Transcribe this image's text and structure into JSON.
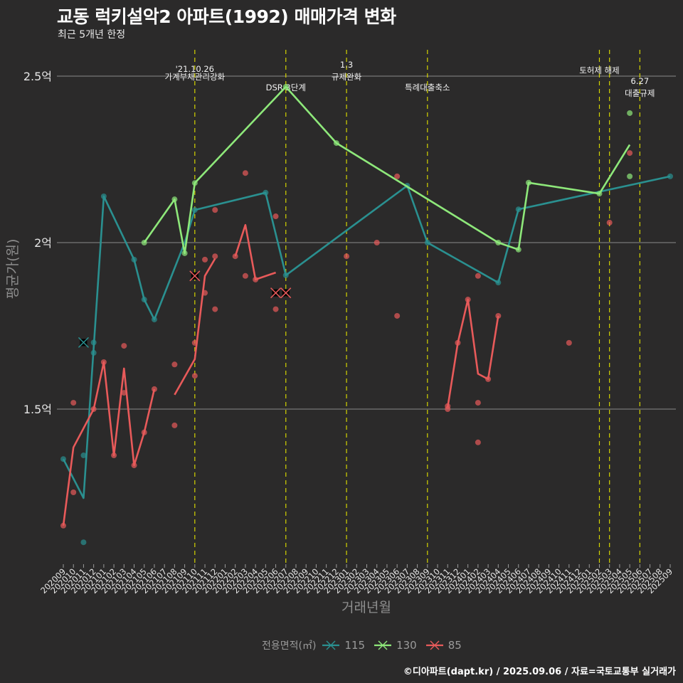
{
  "header": {
    "title": "교동 럭키설악2 아파트(1992) 매매가격 변화",
    "subtitle": "최근 5개년 한정"
  },
  "footer": {
    "credit": "©디아파트(dapt.kr) / 2025.09.06 / 자료=국토교통부 실거래가"
  },
  "legend": {
    "title": "전용면적(㎡)",
    "items": [
      {
        "label": "115",
        "color": "#2a9090"
      },
      {
        "label": "130",
        "color": "#8ee87a"
      },
      {
        "label": "85",
        "color": "#e85a5a"
      }
    ]
  },
  "chart_data": {
    "type": "line",
    "title": "교동 럭키설악2 아파트(1992) 매매가격 변화",
    "subtitle": "최근 5개년 한정",
    "xlabel": "거래년월",
    "ylabel": "평균가(원)",
    "ylim": [
      1.03,
      2.58
    ],
    "yticks": [
      {
        "value": 2.5,
        "label": "2.5억"
      },
      {
        "value": 2.0,
        "label": "2억"
      },
      {
        "value": 1.5,
        "label": "1.5억"
      }
    ],
    "grid": true,
    "legend_position": "bottom",
    "categories": [
      "202009",
      "202010",
      "202011",
      "202012",
      "202101",
      "202102",
      "202103",
      "202104",
      "202105",
      "202106",
      "202107",
      "202108",
      "202109",
      "202110",
      "202111",
      "202112",
      "202201",
      "202202",
      "202203",
      "202204",
      "202205",
      "202206",
      "202207",
      "202208",
      "202209",
      "202210",
      "202211",
      "202212",
      "202301",
      "202302",
      "202303",
      "202304",
      "202305",
      "202306",
      "202307",
      "202308",
      "202309",
      "202310",
      "202311",
      "202312",
      "202401",
      "202402",
      "202403",
      "202404",
      "202405",
      "202406",
      "202407",
      "202408",
      "202409",
      "202410",
      "202411",
      "202412",
      "202501",
      "202502",
      "202503",
      "202504",
      "202505",
      "202506",
      "202507",
      "202508",
      "202509"
    ],
    "series": [
      {
        "name": "115",
        "color": "#2a9090",
        "segments": [
          [
            [
              "202009",
              1.35
            ],
            [
              "202011",
              1.233
            ],
            [
              "202012",
              1.685
            ],
            [
              "202101",
              2.139
            ],
            [
              "202104",
              1.949
            ],
            [
              "202105",
              1.829
            ],
            [
              "202106",
              1.769
            ],
            [
              "202109",
              2.0
            ],
            [
              "202110",
              2.098
            ],
            [
              "202205",
              2.15
            ],
            [
              "202207",
              1.902
            ],
            [
              "202307",
              2.171
            ],
            [
              "202309",
              2.0
            ],
            [
              "202404",
              1.88
            ],
            [
              "202406",
              2.1
            ],
            [
              "202509",
              2.199
            ]
          ]
        ],
        "points": [
          [
            "202009",
            1.35
          ],
          [
            "202011",
            1.361
          ],
          [
            "202011",
            1.1
          ],
          [
            "202012",
            1.7
          ],
          [
            "202012",
            1.669
          ],
          [
            "202101",
            2.139
          ],
          [
            "202104",
            1.949
          ],
          [
            "202105",
            1.829
          ],
          [
            "202106",
            1.769
          ],
          [
            "202110",
            2.098
          ],
          [
            "202205",
            2.15
          ],
          [
            "202207",
            1.902
          ],
          [
            "202307",
            2.171
          ],
          [
            "202309",
            2.0
          ],
          [
            "202404",
            1.88
          ],
          [
            "202406",
            2.1
          ],
          [
            "202509",
            2.199
          ]
        ],
        "cancelled": [
          [
            "202011",
            1.7
          ]
        ]
      },
      {
        "name": "130",
        "color": "#8ee87a",
        "segments": [
          [
            [
              "202105",
              2.0
            ],
            [
              "202108",
              2.13
            ],
            [
              "202109",
              1.968
            ],
            [
              "202110",
              2.179
            ],
            [
              "202207",
              2.468
            ],
            [
              "202212",
              2.299
            ],
            [
              "202404",
              2.0
            ],
            [
              "202406",
              1.979
            ],
            [
              "202407",
              2.18
            ],
            [
              "202502",
              2.147
            ],
            [
              "202505",
              2.294
            ]
          ]
        ],
        "points": [
          [
            "202105",
            2.0
          ],
          [
            "202108",
            2.13
          ],
          [
            "202109",
            1.968
          ],
          [
            "202110",
            2.179
          ],
          [
            "202207",
            2.468
          ],
          [
            "202212",
            2.299
          ],
          [
            "202404",
            2.0
          ],
          [
            "202406",
            1.979
          ],
          [
            "202407",
            2.18
          ],
          [
            "202502",
            2.147
          ],
          [
            "202505",
            2.389
          ],
          [
            "202505",
            2.199
          ]
        ],
        "cancelled": []
      },
      {
        "name": "85",
        "color": "#e85a5a",
        "segments": [
          [
            [
              "202009",
              1.15
            ],
            [
              "202010",
              1.385
            ],
            [
              "202012",
              1.5
            ],
            [
              "202101",
              1.641
            ],
            [
              "202102",
              1.361
            ],
            [
              "202103",
              1.622
            ],
            [
              "202104",
              1.331
            ],
            [
              "202105",
              1.43
            ],
            [
              "202106",
              1.56
            ]
          ],
          [
            [
              "202108",
              1.543
            ],
            [
              "202110",
              1.65
            ],
            [
              "202111",
              1.9
            ],
            [
              "202112",
              1.952
            ]
          ],
          [
            [
              "202202",
              1.959
            ],
            [
              "202203",
              2.053
            ],
            [
              "202204",
              1.889
            ],
            [
              "202206",
              1.91
            ]
          ],
          [
            [
              "202311",
              1.505
            ],
            [
              "202312",
              1.699
            ],
            [
              "202401",
              1.829
            ],
            [
              "202402",
              1.606
            ],
            [
              "202403",
              1.59
            ],
            [
              "202404",
              1.78
            ]
          ]
        ],
        "points": [
          [
            "202009",
            1.15
          ],
          [
            "202010",
            1.519
          ],
          [
            "202010",
            1.25
          ],
          [
            "202012",
            1.5
          ],
          [
            "202101",
            1.641
          ],
          [
            "202102",
            1.361
          ],
          [
            "202103",
            1.69
          ],
          [
            "202103",
            1.549
          ],
          [
            "202104",
            1.331
          ],
          [
            "202105",
            1.43
          ],
          [
            "202106",
            1.56
          ],
          [
            "202108",
            1.634
          ],
          [
            "202108",
            1.451
          ],
          [
            "202110",
            1.699
          ],
          [
            "202110",
            1.6
          ],
          [
            "202111",
            1.949
          ],
          [
            "202111",
            1.849
          ],
          [
            "202112",
            2.098
          ],
          [
            "202112",
            1.959
          ],
          [
            "202112",
            1.8
          ],
          [
            "202202",
            1.959
          ],
          [
            "202203",
            2.209
          ],
          [
            "202203",
            1.9
          ],
          [
            "202204",
            1.889
          ],
          [
            "202206",
            2.079
          ],
          [
            "202206",
            1.8
          ],
          [
            "202301",
            1.959
          ],
          [
            "202304",
            2.0
          ],
          [
            "202306",
            2.199
          ],
          [
            "202306",
            1.78
          ],
          [
            "202311",
            1.509
          ],
          [
            "202311",
            1.5
          ],
          [
            "202312",
            1.699
          ],
          [
            "202401",
            1.829
          ],
          [
            "202402",
            1.9
          ],
          [
            "202402",
            1.519
          ],
          [
            "202402",
            1.4
          ],
          [
            "202403",
            1.59
          ],
          [
            "202404",
            1.78
          ],
          [
            "202411",
            1.699
          ],
          [
            "202503",
            2.06
          ],
          [
            "202505",
            2.269
          ]
        ],
        "cancelled": [
          [
            "202110",
            1.9
          ],
          [
            "202206",
            1.849
          ],
          [
            "202207",
            1.849
          ]
        ]
      }
    ],
    "annotations": [
      {
        "x": "202110",
        "lines": [
          "'21.10.26",
          "가계부채관리강화"
        ]
      },
      {
        "x": "202207",
        "lines": [
          "DSR 3단계"
        ]
      },
      {
        "x": "202301",
        "lines": [
          "1.3",
          "규제완화"
        ]
      },
      {
        "x": "202309",
        "lines": [
          "특례대출축소"
        ]
      },
      {
        "x": "202502",
        "lines": [
          "토허제 해제"
        ]
      },
      {
        "x": "202503",
        "lines": []
      },
      {
        "x": "202506",
        "lines": [
          "6.27",
          "대출규제"
        ]
      }
    ]
  }
}
